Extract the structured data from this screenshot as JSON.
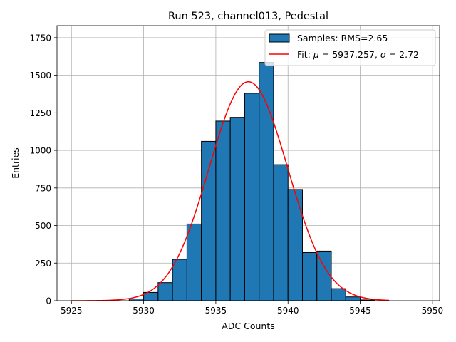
{
  "chart_data": {
    "type": "bar",
    "title": "Run 523, channel013, Pedestal",
    "xlabel": "ADC Counts",
    "ylabel": "Entries",
    "xlim": [
      5924,
      5950.5
    ],
    "ylim": [
      0,
      1830
    ],
    "xticks": [
      5925,
      5930,
      5935,
      5940,
      5945,
      5950
    ],
    "yticks": [
      0,
      250,
      500,
      750,
      1000,
      1250,
      1500,
      1750
    ],
    "grid": true,
    "legend_position": "top-right",
    "colors": {
      "bars": "#1f77b4",
      "edge": "#000000",
      "fit": "#ff0000",
      "grid": "#b0b0b0"
    },
    "histogram": {
      "name": "Samples: RMS=2.65",
      "bin_width": 1,
      "bin_starts": [
        5929,
        5930,
        5931,
        5932,
        5933,
        5934,
        5935,
        5936,
        5937,
        5938,
        5939,
        5940,
        5941,
        5942,
        5943,
        5944,
        5945
      ],
      "values": [
        12,
        55,
        120,
        275,
        510,
        1060,
        1195,
        1220,
        1380,
        1585,
        905,
        740,
        320,
        330,
        80,
        25,
        5
      ]
    },
    "fit": {
      "name": "Fit: μ = 5937.257, σ = 2.72",
      "name_prefix": "Fit: ",
      "name_mu": "μ",
      "name_mu_value": " = 5937.257, ",
      "name_sigma": "σ",
      "name_sigma_value": " = 2.72",
      "mu": 5937.257,
      "sigma": 2.72,
      "peak": 1457,
      "x_range": [
        5925,
        5947
      ]
    }
  }
}
